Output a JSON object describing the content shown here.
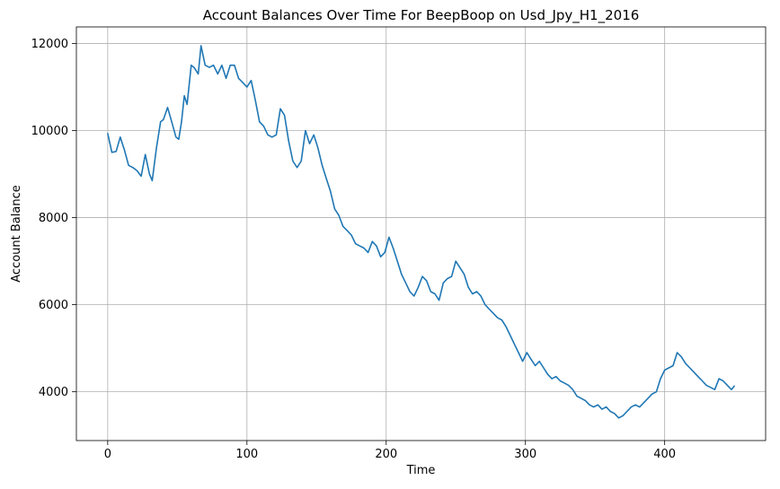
{
  "chart_data": {
    "type": "line",
    "title": "Account Balances Over Time For BeepBoop on Usd_Jpy_H1_2016",
    "xlabel": "Time",
    "ylabel": "Account Balance",
    "xlim": [
      -22.5,
      472.5
    ],
    "ylim": [
      2880,
      12380
    ],
    "xticks": [
      0,
      100,
      200,
      300,
      400
    ],
    "yticks": [
      4000,
      6000,
      8000,
      10000,
      12000
    ],
    "grid": true,
    "legend": "none",
    "series": [
      {
        "color": "#1f77b4",
        "points": [
          [
            0,
            9930
          ],
          [
            3,
            9500
          ],
          [
            6,
            9520
          ],
          [
            9,
            9850
          ],
          [
            12,
            9550
          ],
          [
            15,
            9200
          ],
          [
            18,
            9150
          ],
          [
            21,
            9080
          ],
          [
            24,
            8950
          ],
          [
            27,
            9450
          ],
          [
            30,
            9000
          ],
          [
            32,
            8850
          ],
          [
            35,
            9600
          ],
          [
            38,
            10200
          ],
          [
            40,
            10250
          ],
          [
            43,
            10530
          ],
          [
            46,
            10200
          ],
          [
            49,
            9850
          ],
          [
            51,
            9800
          ],
          [
            53,
            10200
          ],
          [
            55,
            10800
          ],
          [
            57,
            10600
          ],
          [
            60,
            11500
          ],
          [
            62,
            11450
          ],
          [
            65,
            11300
          ],
          [
            67,
            11950
          ],
          [
            70,
            11500
          ],
          [
            73,
            11450
          ],
          [
            76,
            11500
          ],
          [
            79,
            11300
          ],
          [
            82,
            11500
          ],
          [
            85,
            11200
          ],
          [
            88,
            11500
          ],
          [
            91,
            11500
          ],
          [
            94,
            11200
          ],
          [
            97,
            11100
          ],
          [
            100,
            11000
          ],
          [
            103,
            11150
          ],
          [
            106,
            10700
          ],
          [
            109,
            10200
          ],
          [
            112,
            10100
          ],
          [
            115,
            9900
          ],
          [
            118,
            9850
          ],
          [
            121,
            9900
          ],
          [
            124,
            10500
          ],
          [
            127,
            10350
          ],
          [
            130,
            9750
          ],
          [
            133,
            9300
          ],
          [
            136,
            9150
          ],
          [
            139,
            9300
          ],
          [
            142,
            10000
          ],
          [
            145,
            9700
          ],
          [
            148,
            9900
          ],
          [
            151,
            9600
          ],
          [
            154,
            9200
          ],
          [
            157,
            8900
          ],
          [
            160,
            8600
          ],
          [
            163,
            8200
          ],
          [
            166,
            8050
          ],
          [
            169,
            7800
          ],
          [
            172,
            7700
          ],
          [
            175,
            7600
          ],
          [
            178,
            7400
          ],
          [
            181,
            7350
          ],
          [
            184,
            7300
          ],
          [
            187,
            7200
          ],
          [
            190,
            7450
          ],
          [
            193,
            7350
          ],
          [
            196,
            7100
          ],
          [
            199,
            7200
          ],
          [
            202,
            7550
          ],
          [
            205,
            7300
          ],
          [
            208,
            7000
          ],
          [
            211,
            6700
          ],
          [
            214,
            6500
          ],
          [
            217,
            6300
          ],
          [
            220,
            6200
          ],
          [
            223,
            6400
          ],
          [
            226,
            6650
          ],
          [
            229,
            6550
          ],
          [
            232,
            6300
          ],
          [
            235,
            6250
          ],
          [
            238,
            6100
          ],
          [
            241,
            6500
          ],
          [
            244,
            6600
          ],
          [
            247,
            6650
          ],
          [
            250,
            7000
          ],
          [
            253,
            6850
          ],
          [
            256,
            6700
          ],
          [
            259,
            6400
          ],
          [
            262,
            6250
          ],
          [
            265,
            6300
          ],
          [
            268,
            6200
          ],
          [
            271,
            6000
          ],
          [
            274,
            5900
          ],
          [
            277,
            5800
          ],
          [
            280,
            5700
          ],
          [
            283,
            5650
          ],
          [
            286,
            5500
          ],
          [
            289,
            5300
          ],
          [
            292,
            5100
          ],
          [
            295,
            4900
          ],
          [
            298,
            4700
          ],
          [
            301,
            4900
          ],
          [
            304,
            4750
          ],
          [
            307,
            4600
          ],
          [
            310,
            4700
          ],
          [
            313,
            4550
          ],
          [
            316,
            4400
          ],
          [
            319,
            4300
          ],
          [
            322,
            4350
          ],
          [
            325,
            4250
          ],
          [
            328,
            4200
          ],
          [
            331,
            4150
          ],
          [
            334,
            4050
          ],
          [
            337,
            3900
          ],
          [
            340,
            3850
          ],
          [
            343,
            3800
          ],
          [
            346,
            3700
          ],
          [
            349,
            3650
          ],
          [
            352,
            3700
          ],
          [
            355,
            3600
          ],
          [
            358,
            3650
          ],
          [
            361,
            3550
          ],
          [
            364,
            3500
          ],
          [
            367,
            3400
          ],
          [
            370,
            3450
          ],
          [
            373,
            3550
          ],
          [
            376,
            3650
          ],
          [
            379,
            3700
          ],
          [
            382,
            3650
          ],
          [
            385,
            3750
          ],
          [
            388,
            3850
          ],
          [
            391,
            3950
          ],
          [
            394,
            4000
          ],
          [
            397,
            4300
          ],
          [
            400,
            4500
          ],
          [
            403,
            4550
          ],
          [
            406,
            4600
          ],
          [
            409,
            4900
          ],
          [
            412,
            4800
          ],
          [
            415,
            4650
          ],
          [
            418,
            4550
          ],
          [
            421,
            4450
          ],
          [
            424,
            4350
          ],
          [
            427,
            4250
          ],
          [
            430,
            4150
          ],
          [
            433,
            4100
          ],
          [
            436,
            4050
          ],
          [
            439,
            4300
          ],
          [
            442,
            4250
          ],
          [
            445,
            4150
          ],
          [
            448,
            4050
          ],
          [
            450,
            4130
          ]
        ]
      }
    ]
  }
}
